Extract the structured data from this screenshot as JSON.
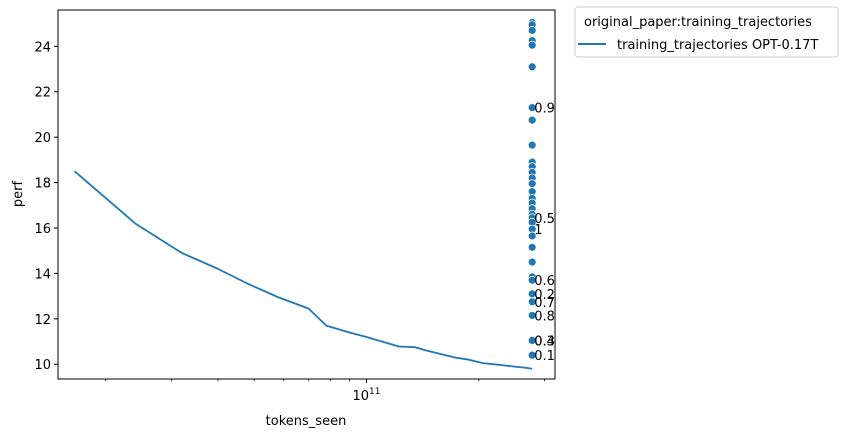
{
  "chart_data": {
    "type": "line",
    "xlabel": "tokens_seen",
    "ylabel": "perf",
    "xscale": "log",
    "xlim": [
      14900000000,
      320000000000
    ],
    "ylim": [
      9.35,
      25.6
    ],
    "x_tick_labels": [
      {
        "value": 100000000000,
        "base": "10",
        "exp": "11"
      }
    ],
    "y_ticks": [
      10,
      12,
      14,
      16,
      18,
      20,
      22,
      24
    ],
    "legend": {
      "placement": "outside-upper-right",
      "title": "original_paper:training_trajectories",
      "entries": [
        "training_trajectories OPT-0.17T"
      ]
    },
    "series": [
      {
        "name": "training_trajectories OPT-0.17T",
        "color": "#1f77b4",
        "x": [
          16500000000,
          24000000000,
          32000000000,
          40000000000,
          48000000000,
          58000000000,
          70000000000,
          78000000000,
          90000000000,
          100000000000,
          110000000000,
          122000000000,
          135000000000,
          145000000000,
          158000000000,
          172000000000,
          188000000000,
          205000000000,
          225000000000,
          248000000000,
          265000000000,
          278000000000
        ],
        "y": [
          18.5,
          16.2,
          14.9,
          14.2,
          13.55,
          12.95,
          12.45,
          11.7,
          11.4,
          11.2,
          11.0,
          10.78,
          10.75,
          10.6,
          10.45,
          10.3,
          10.2,
          10.05,
          9.98,
          9.9,
          9.85,
          9.8
        ]
      }
    ],
    "scatter": {
      "color": "#1f77b4",
      "x": 278000000000,
      "y": [
        25.05,
        24.95,
        24.7,
        24.25,
        24.05,
        23.1,
        21.3,
        20.75,
        19.65,
        18.9,
        18.7,
        18.45,
        18.2,
        17.95,
        17.6,
        17.3,
        17.1,
        16.85,
        16.6,
        16.45,
        16.25,
        15.95,
        15.65,
        15.15,
        14.5,
        13.85,
        13.7,
        13.1,
        12.75,
        12.15,
        11.05,
        10.4
      ]
    },
    "annotations": [
      {
        "text": "0.9",
        "y": 21.3
      },
      {
        "text": "0.5",
        "y": 16.45
      },
      {
        "text": "1",
        "y": 15.95
      },
      {
        "text": "0.6",
        "y": 13.7
      },
      {
        "text": "0.2",
        "y": 13.1
      },
      {
        "text": "0.7",
        "y": 12.75
      },
      {
        "text": "0.8",
        "y": 12.15
      },
      {
        "text": "0.4",
        "y": 11.05
      },
      {
        "text": "0.3",
        "y": 11.05
      },
      {
        "text": "0.1",
        "y": 10.4
      }
    ]
  }
}
